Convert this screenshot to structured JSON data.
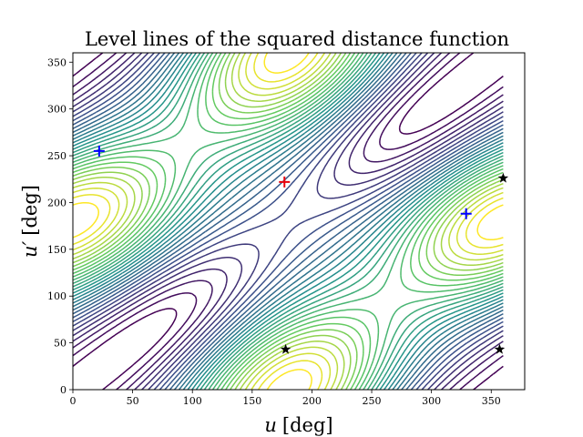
{
  "chart_data": {
    "type": "contour",
    "title": "Level lines of the squared distance function",
    "xlabel": "u [deg]",
    "ylabel": "u′ [deg]",
    "xlabel_var": "u",
    "xlabel_unit": "[deg]",
    "ylabel_var": "u′",
    "ylabel_unit": "[deg]",
    "xlim": [
      0,
      378
    ],
    "ylim": [
      0,
      360
    ],
    "x_grid_range": [
      0,
      360
    ],
    "xticks": [
      0,
      50,
      100,
      150,
      200,
      250,
      300,
      350
    ],
    "yticks": [
      0,
      50,
      100,
      150,
      200,
      250,
      300,
      350
    ],
    "colormap": "viridis",
    "colormap_stops": [
      "#440154",
      "#3b528b",
      "#21918c",
      "#5ec962",
      "#fde725"
    ],
    "contour_levels": 30,
    "markers": [
      {
        "x": 177,
        "y": 222,
        "symbol": "+",
        "color": "#e8000b"
      },
      {
        "x": 22,
        "y": 255,
        "symbol": "+",
        "color": "#0000ff"
      },
      {
        "x": 329,
        "y": 188,
        "symbol": "+",
        "color": "#0000ff"
      },
      {
        "x": 360,
        "y": 226,
        "symbol": "star",
        "color": "#000000"
      },
      {
        "x": 178,
        "y": 43,
        "symbol": "star",
        "color": "#000000"
      },
      {
        "x": 357,
        "y": 43,
        "symbol": "star",
        "color": "#000000"
      }
    ]
  }
}
